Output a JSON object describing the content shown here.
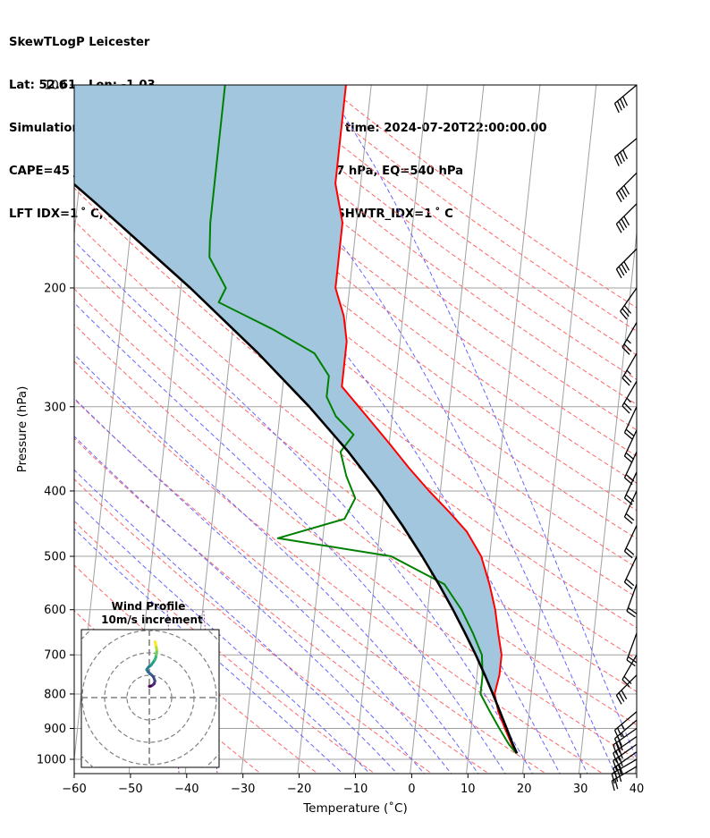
{
  "header": {
    "line1": "SkewTLogP Leicester",
    "line2": "Lat: 52.61   Lon: -1.03",
    "line3": "Simulation start time: 2024-07-19_00:00:00, Valid time: 2024-07-20T22:00:00.00",
    "line4": "CAPE=45 j/kg, CIN=-1 j/kg, LCL=975 hPa, LFC=977 hPa, EQ=540 hPa",
    "line5": "LFT IDX=1 ˚ C, K IDX=33 ˚ C, TOTAL TOTS=47 ˚ C, SHWTR_IDX=1 ˚ C"
  },
  "chart_data": {
    "type": "skewt-logp",
    "xlabel": "Temperature (˚C)",
    "ylabel": "Pressure (hPa)",
    "xlim": [
      -60,
      40
    ],
    "ylim": [
      1050,
      100
    ],
    "y_scale": "log",
    "x_ticks": [
      -60,
      -50,
      -40,
      -30,
      -20,
      -10,
      0,
      10,
      20,
      30,
      40
    ],
    "x_tick_labels": [
      "−60",
      "−50",
      "−40",
      "−30",
      "−20",
      "−10",
      "0",
      "10",
      "20",
      "30",
      "40"
    ],
    "y_ticks": [
      100,
      200,
      300,
      400,
      500,
      600,
      700,
      800,
      900,
      1000
    ],
    "y_tick_labels": [
      "100",
      "200",
      "300",
      "400",
      "500",
      "600",
      "700",
      "800",
      "900",
      "1000"
    ],
    "grid": true,
    "colors": {
      "temperature": "#ff0000",
      "dewpoint": "#008000",
      "parcel": "#000000",
      "cape_fill": "#a3c6df",
      "dry_adiabat": "#ff6666",
      "moist_adiabat": "#6666ff",
      "mixing_ratio": "#a040a0",
      "isotherm": "#a0a0a0"
    },
    "temperature": {
      "name": "",
      "pressure": [
        980,
        950,
        900,
        850,
        800,
        750,
        700,
        650,
        600,
        550,
        500,
        460,
        430,
        400,
        370,
        340,
        310,
        280,
        260,
        240,
        220,
        200,
        180,
        160,
        140,
        120,
        100
      ],
      "values": [
        18.6,
        17.5,
        16.0,
        14.5,
        13.5,
        14.0,
        14.0,
        13.0,
        12.0,
        10.5,
        8.5,
        5.5,
        2.0,
        -2.0,
        -6.0,
        -10.0,
        -14.5,
        -19.5,
        -19.5,
        -19.5,
        -20.5,
        -22.5,
        -22.5,
        -22.5,
        -24.5,
        -24.5,
        -24.5
      ]
    },
    "dewpoint": {
      "name": "",
      "pressure": [
        980,
        950,
        900,
        850,
        800,
        750,
        700,
        650,
        600,
        550,
        500,
        470,
        440,
        410,
        380,
        350,
        330,
        310,
        290,
        270,
        250,
        230,
        210,
        200,
        180,
        160,
        140,
        120,
        100
      ],
      "values": [
        18.5,
        17.0,
        15.0,
        13.0,
        11.0,
        11.0,
        10.5,
        8.5,
        6.0,
        2.5,
        -7.5,
        -28.0,
        -16.5,
        -15.0,
        -17.0,
        -18.5,
        -16.5,
        -20.0,
        -22.0,
        -22.0,
        -25.0,
        -33.0,
        -43.0,
        -42.0,
        -45.5,
        -46.0,
        -46.0,
        -46.0,
        -46.0
      ]
    },
    "parcel": {
      "name": "",
      "pressure": [
        980,
        950,
        900,
        850,
        800,
        750,
        700,
        650,
        600,
        550,
        500,
        450,
        400,
        350,
        300,
        250,
        200,
        150,
        100
      ],
      "values": [
        18.6,
        17.7,
        16.3,
        14.8,
        13.2,
        11.4,
        9.4,
        7.1,
        4.5,
        1.5,
        -2.0,
        -6.1,
        -11.0,
        -17.1,
        -24.9,
        -35.0,
        -48.3,
        -66.6,
        -93.2
      ]
    },
    "wind_barbs": {
      "pressure": [
        1025,
        1000,
        975,
        950,
        925,
        900,
        875,
        850,
        750,
        700,
        650,
        550,
        500,
        450,
        400,
        375,
        350,
        325,
        300,
        275,
        250,
        225,
        200,
        175,
        150,
        135,
        120,
        100
      ],
      "speed_kt": [
        25,
        25,
        30,
        30,
        30,
        30,
        25,
        25,
        30,
        20,
        20,
        20,
        20,
        20,
        20,
        20,
        20,
        20,
        20,
        25,
        25,
        25,
        30,
        40,
        40,
        40,
        40,
        40
      ],
      "direction_deg": [
        240,
        240,
        235,
        235,
        235,
        235,
        230,
        230,
        225,
        210,
        200,
        200,
        205,
        205,
        205,
        205,
        205,
        205,
        205,
        210,
        210,
        210,
        215,
        225,
        225,
        225,
        230,
        230
      ]
    },
    "hodograph": {
      "title": "Wind Profile",
      "subtitle": "10m/s increment",
      "rings_ms": [
        10,
        20,
        30,
        40
      ],
      "u_ms": [
        0.0,
        0.8,
        1.5,
        2.2,
        2.5,
        1.8,
        0.6,
        -0.6,
        -1.2,
        -0.4,
        0.8,
        1.6,
        2.4,
        2.9,
        3.1,
        3.3,
        3.3,
        3.1,
        2.9,
        2.7,
        2.5
      ],
      "v_ms": [
        5.0,
        5.2,
        5.6,
        6.2,
        7.5,
        9.3,
        10.5,
        11.5,
        12.5,
        13.6,
        14.5,
        15.6,
        16.8,
        18.0,
        19.2,
        20.5,
        21.5,
        22.5,
        23.5,
        24.5,
        25.0
      ],
      "colormap": "viridis"
    }
  }
}
